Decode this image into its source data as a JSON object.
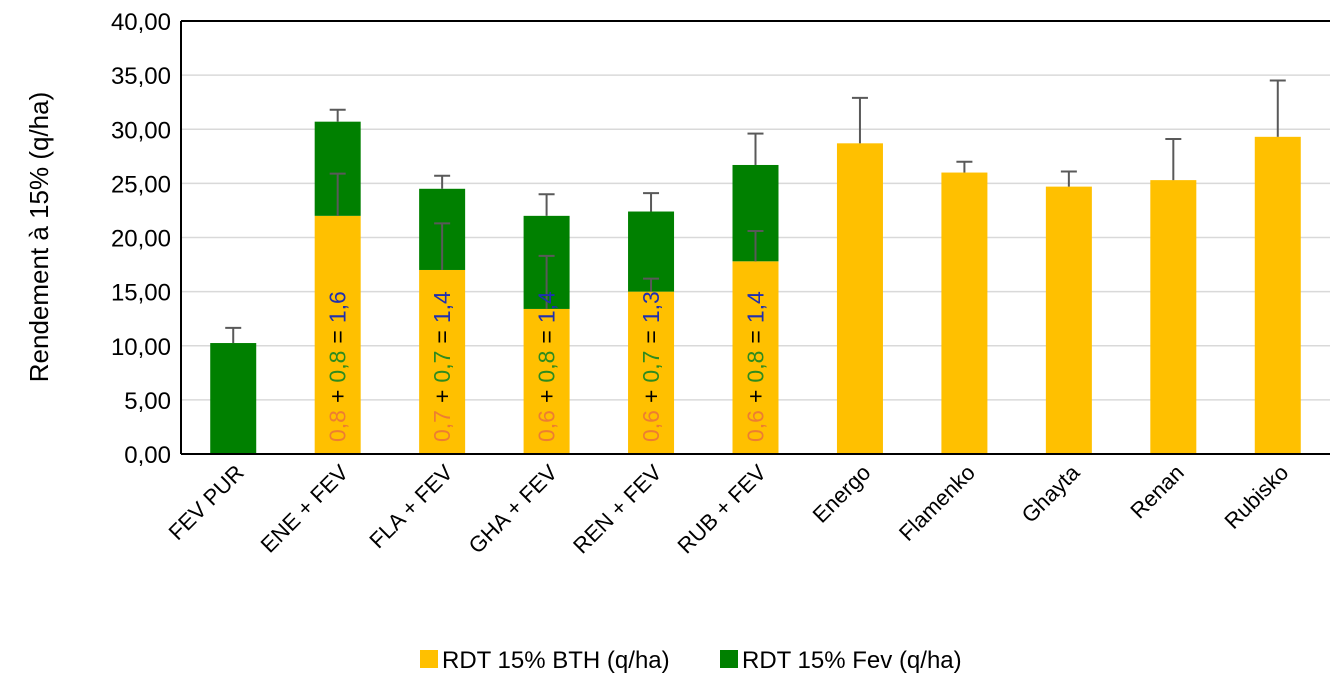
{
  "chart_data": {
    "type": "stacked_bar",
    "ylabel": "Rendement à 15% (q/ha)",
    "categories": [
      "FEV PUR",
      "ENE + FEV",
      "FLA + FEV",
      "GHA + FEV",
      "REN + FEV",
      "RUB + FEV",
      "Energo",
      "Flamenko",
      "Ghayta",
      "Renan",
      "Rubisko"
    ],
    "series": [
      {
        "name": "RDT 15% BTH (q/ha)",
        "color": "#ffc000",
        "values": [
          null,
          22.0,
          17.0,
          13.4,
          15.0,
          17.8,
          28.7,
          26.0,
          24.7,
          25.3,
          29.3
        ],
        "errors": [
          null,
          3.9,
          4.3,
          4.9,
          1.2,
          2.8,
          4.2,
          1.0,
          1.4,
          3.8,
          5.2
        ]
      },
      {
        "name": "RDT 15% Fev (q/ha)",
        "color": "#008000",
        "values": [
          10.25,
          8.7,
          7.5,
          8.6,
          7.4,
          8.9,
          null,
          null,
          null,
          null,
          null
        ],
        "errors": [
          1.4,
          1.1,
          1.2,
          2.0,
          1.7,
          2.9,
          null,
          null,
          null,
          null,
          null
        ]
      }
    ],
    "ylim": [
      0,
      40
    ],
    "yticks": [
      {
        "value": 0,
        "label": "0,00"
      },
      {
        "value": 5,
        "label": "5,00"
      },
      {
        "value": 10,
        "label": "10,00"
      },
      {
        "value": 15,
        "label": "15,00"
      },
      {
        "value": 20,
        "label": "20,00"
      },
      {
        "value": 25,
        "label": "25,00"
      },
      {
        "value": 30,
        "label": "30,00"
      },
      {
        "value": 35,
        "label": "35,00"
      },
      {
        "value": 40,
        "label": "40,00"
      }
    ],
    "grid": true,
    "legend": "bottom",
    "operators": [
      "+",
      "="
    ],
    "annotations": [
      {
        "category": 1,
        "bth": "0,8",
        "fev": "0,8",
        "total": "1,6"
      },
      {
        "category": 2,
        "bth": "0,7",
        "fev": "0,7",
        "total": "1,4"
      },
      {
        "category": 3,
        "bth": "0,6",
        "fev": "0,8",
        "total": "1,4"
      },
      {
        "category": 4,
        "bth": "0,6",
        "fev": "0,7",
        "total": "1,3"
      },
      {
        "category": 5,
        "bth": "0,6",
        "fev": "0,8",
        "total": "1,4"
      }
    ],
    "annotation_colors": {
      "bth": "#ed7d31",
      "fev": "#2e8b1e",
      "total": "#1f2fb0"
    }
  }
}
